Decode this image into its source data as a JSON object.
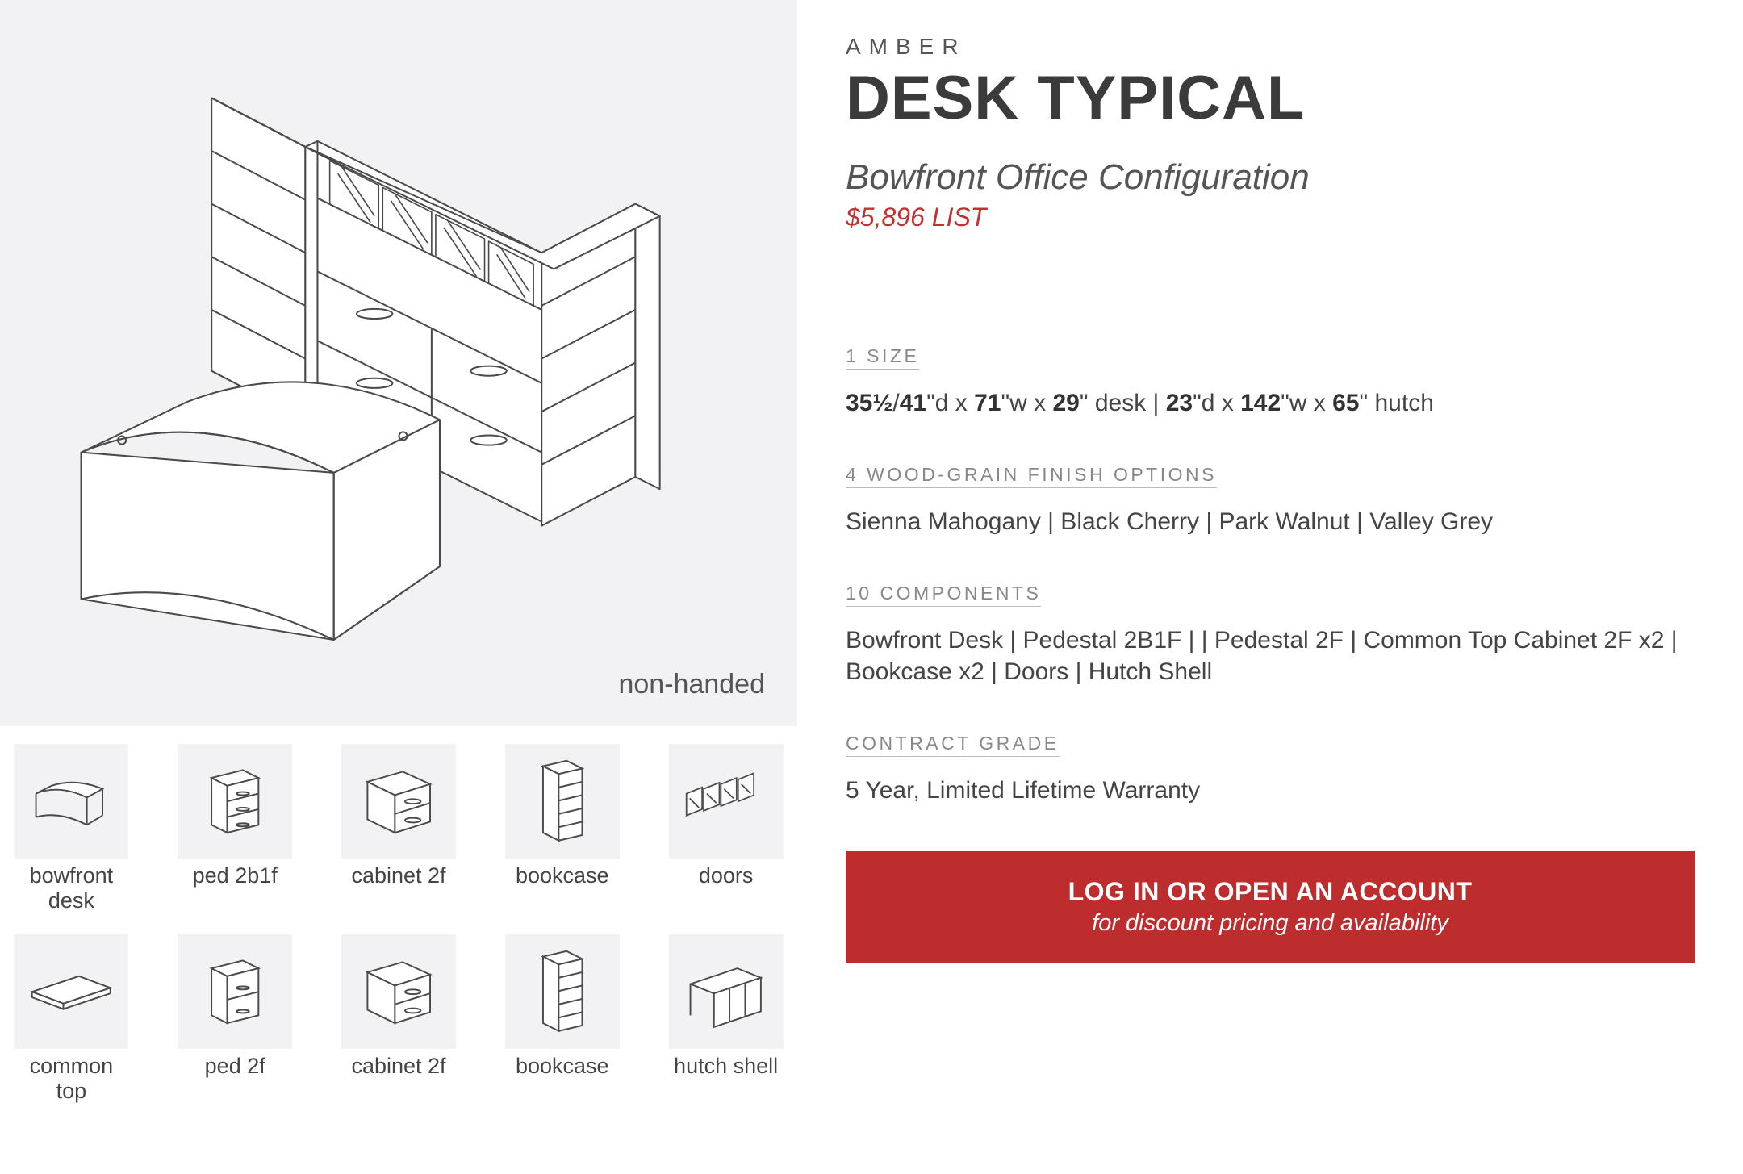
{
  "hero": {
    "label": "non-handed",
    "bg": "#f2f2f4"
  },
  "thumbs": [
    {
      "label": "bowfront\ndesk",
      "icon": "desk"
    },
    {
      "label": "ped 2b1f",
      "icon": "ped3"
    },
    {
      "label": "cabinet 2f",
      "icon": "cab2"
    },
    {
      "label": "bookcase",
      "icon": "bookcase"
    },
    {
      "label": "doors",
      "icon": "doors"
    },
    {
      "label": "common\ntop",
      "icon": "slab"
    },
    {
      "label": "ped 2f",
      "icon": "ped2"
    },
    {
      "label": "cabinet 2f",
      "icon": "cab2"
    },
    {
      "label": "bookcase",
      "icon": "bookcase"
    },
    {
      "label": "hutch shell",
      "icon": "hutch"
    }
  ],
  "product": {
    "eyebrow": "AMBER",
    "title": "DESK TYPICAL",
    "subtitle": "Bowfront Office Configuration",
    "price": "$5,896 LIST"
  },
  "sections": {
    "size": {
      "label": "1 SIZE",
      "html": "<b>35½</b>/<b>41</b>\"d x <b>71</b>\"w x <b>29</b>\" desk | <b>23</b>\"d x <b>142</b>\"w x <b>65</b>\" hutch"
    },
    "finish": {
      "label": "4 WOOD-GRAIN FINISH OPTIONS",
      "text": "Sienna Mahogany | Black Cherry | Park Walnut | Valley Grey"
    },
    "components": {
      "label": "10 COMPONENTS",
      "text": "Bowfront Desk | Pedestal 2B1F |  | Pedestal 2F | Common Top Cabinet 2F x2 | Bookcase x2 | Doors | Hutch Shell"
    },
    "grade": {
      "label": "CONTRACT GRADE",
      "text": "5 Year, Limited Lifetime Warranty"
    }
  },
  "cta": {
    "main": "LOG IN OR OPEN AN ACCOUNT",
    "sub": "for discount pricing and availability",
    "bg": "#bd2d2d"
  },
  "colors": {
    "stroke": "#4a4a4a",
    "thumbBg": "#f2f2f4"
  }
}
